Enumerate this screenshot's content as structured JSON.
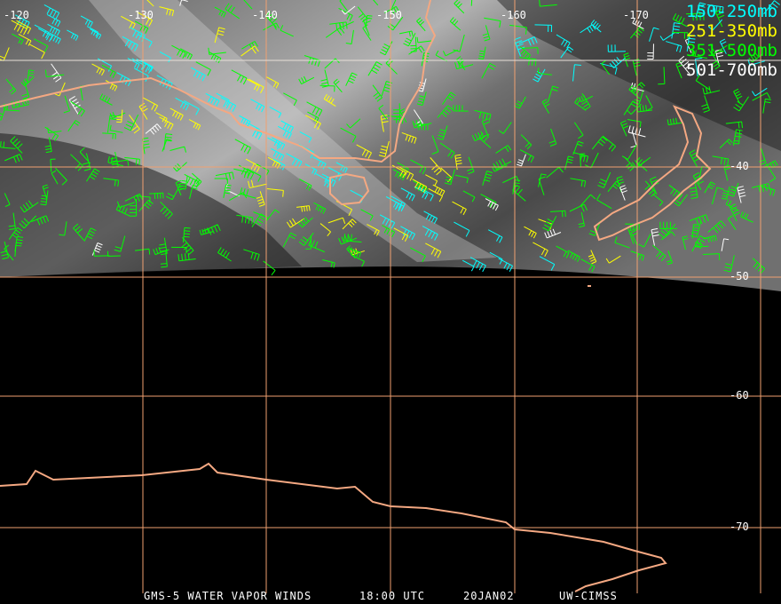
{
  "legend": [
    {
      "label": "150-250mb",
      "color": "#00ffff"
    },
    {
      "label": "251-350mb",
      "color": "#ffff00"
    },
    {
      "label": "351-500mb",
      "color": "#00ff00"
    },
    {
      "label": "501-700mb",
      "color": "#ffffff"
    }
  ],
  "longitude_labels": [
    "-120",
    "-130",
    "-140",
    "-150",
    "-160",
    "-170"
  ],
  "latitude_labels": [
    "-40",
    "-50",
    "-60",
    "-70"
  ],
  "caption": {
    "title": "GMS-5 WATER VAPOR WINDS",
    "time": "18:00 UTC",
    "date": "20JAN02",
    "source": "UW-CIMSS"
  },
  "colors": {
    "grid": "#f0a070",
    "coastline": "#f4a882",
    "background": "#000000"
  }
}
